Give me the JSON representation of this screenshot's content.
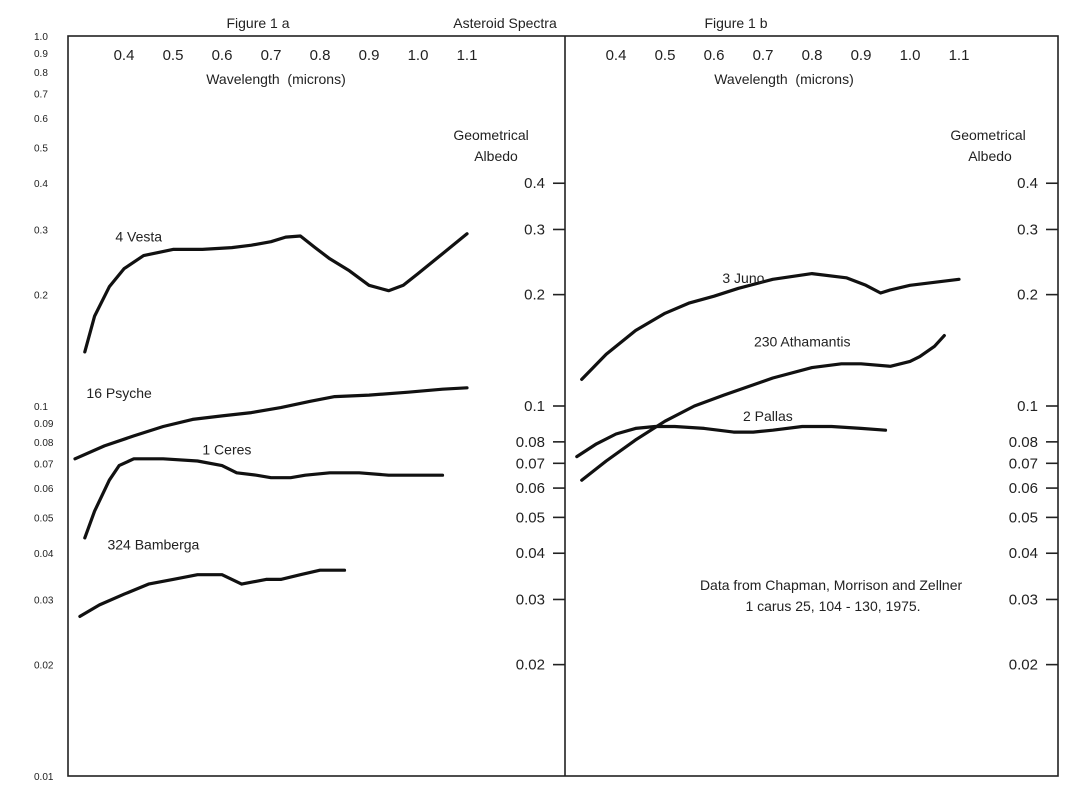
{
  "chart_data": [
    {
      "type": "line",
      "panel": "left",
      "title": "Figure 1 a",
      "supertitle": "Asteroid Spectra",
      "xlabel": "Wavelength  (microns)",
      "ylabel": "Geometrical Albedo",
      "x_ticks": [
        0.4,
        0.5,
        0.6,
        0.7,
        0.8,
        0.9,
        1.0,
        1.1
      ],
      "x_tick_labels": [
        "0.4",
        "0.5",
        "0.6",
        "0.7",
        "0.8",
        "0.9",
        "1.0",
        "1.1"
      ],
      "xlim": [
        0.3,
        1.3
      ],
      "y_scale": "log",
      "ylim": [
        0.01,
        1.0
      ],
      "left_y_ticks": [
        1.0,
        0.9,
        0.8,
        0.7,
        0.6,
        0.5,
        0.4,
        0.3,
        0.2,
        0.1,
        0.09,
        0.08,
        0.07,
        0.06,
        0.05,
        0.04,
        0.03,
        0.02,
        0.01
      ],
      "left_y_tick_labels": [
        "1.0",
        "0.9",
        "0.8",
        "0.7",
        "0.6",
        "0.5",
        "0.4",
        "0.3",
        "0.2",
        "0.1",
        "0.09",
        "0.08",
        "0.07",
        "0.06",
        "0.05",
        "0.04",
        "0.03",
        "0.02",
        "0.01"
      ],
      "right_y_ticks": [
        0.4,
        0.3,
        0.2,
        0.1,
        0.08,
        0.07,
        0.06,
        0.05,
        0.04,
        0.03,
        0.02
      ],
      "right_y_tick_labels": [
        "0.4",
        "0.3",
        "0.2",
        "0.1",
        "0.08",
        "0.07",
        "0.06",
        "0.05",
        "0.04",
        "0.03",
        "0.02"
      ],
      "series": [
        {
          "name": "4 Vesta",
          "label_at": [
            0.43,
            0.278
          ],
          "x": [
            0.32,
            0.34,
            0.37,
            0.4,
            0.44,
            0.5,
            0.56,
            0.62,
            0.66,
            0.7,
            0.73,
            0.76,
            0.79,
            0.82,
            0.86,
            0.9,
            0.94,
            0.97,
            1.0,
            1.05,
            1.1
          ],
          "y": [
            0.14,
            0.175,
            0.21,
            0.235,
            0.255,
            0.265,
            0.265,
            0.268,
            0.272,
            0.278,
            0.286,
            0.288,
            0.268,
            0.25,
            0.232,
            0.212,
            0.205,
            0.212,
            0.228,
            0.258,
            0.292
          ]
        },
        {
          "name": "16 Psyche",
          "label_at": [
            0.39,
            0.105
          ],
          "x": [
            0.3,
            0.36,
            0.42,
            0.48,
            0.54,
            0.6,
            0.66,
            0.72,
            0.78,
            0.83,
            0.9,
            0.98,
            1.05,
            1.1
          ],
          "y": [
            0.072,
            0.078,
            0.083,
            0.088,
            0.092,
            0.094,
            0.096,
            0.099,
            0.103,
            0.106,
            0.107,
            0.109,
            0.111,
            0.112
          ]
        },
        {
          "name": "1 Ceres",
          "label_at": [
            0.61,
            0.074
          ],
          "x": [
            0.32,
            0.34,
            0.37,
            0.39,
            0.42,
            0.48,
            0.55,
            0.6,
            0.63,
            0.67,
            0.7,
            0.74,
            0.77,
            0.82,
            0.88,
            0.94,
            1.0,
            1.05
          ],
          "y": [
            0.044,
            0.052,
            0.063,
            0.069,
            0.072,
            0.072,
            0.071,
            0.069,
            0.066,
            0.065,
            0.064,
            0.064,
            0.065,
            0.066,
            0.066,
            0.065,
            0.065,
            0.065
          ]
        },
        {
          "name": "324 Bamberga",
          "label_at": [
            0.46,
            0.041
          ],
          "x": [
            0.31,
            0.35,
            0.4,
            0.45,
            0.5,
            0.55,
            0.6,
            0.64,
            0.69,
            0.72,
            0.76,
            0.8,
            0.85
          ],
          "y": [
            0.027,
            0.029,
            0.031,
            0.033,
            0.034,
            0.035,
            0.035,
            0.033,
            0.034,
            0.034,
            0.035,
            0.036,
            0.036
          ]
        }
      ]
    },
    {
      "type": "line",
      "panel": "right",
      "title": "Figure 1 b",
      "xlabel": "Wavelength  (microns)",
      "ylabel": "Geometrical Albedo",
      "x_ticks": [
        0.4,
        0.5,
        0.6,
        0.7,
        0.8,
        0.9,
        1.0,
        1.1
      ],
      "x_tick_labels": [
        "0.4",
        "0.5",
        "0.6",
        "0.7",
        "0.8",
        "0.9",
        "1.0",
        "1.1"
      ],
      "xlim": [
        0.3,
        1.3
      ],
      "y_scale": "log",
      "ylim": [
        0.01,
        1.0
      ],
      "right_y_ticks": [
        0.4,
        0.3,
        0.2,
        0.1,
        0.08,
        0.07,
        0.06,
        0.05,
        0.04,
        0.03,
        0.02
      ],
      "right_y_tick_labels": [
        "0.4",
        "0.3",
        "0.2",
        "0.1",
        "0.08",
        "0.07",
        "0.06",
        "0.05",
        "0.04",
        "0.03",
        "0.02"
      ],
      "annotation": [
        "Data from Chapman, Morrison and Zellner",
        "1 carus 25, 104 - 130, 1975."
      ],
      "series": [
        {
          "name": "3 Juno",
          "label_at": [
            0.66,
            0.215
          ],
          "x": [
            0.33,
            0.38,
            0.44,
            0.5,
            0.55,
            0.6,
            0.65,
            0.72,
            0.8,
            0.87,
            0.91,
            0.94,
            0.96,
            1.0,
            1.05,
            1.1
          ],
          "y": [
            0.118,
            0.138,
            0.16,
            0.178,
            0.19,
            0.198,
            0.208,
            0.22,
            0.228,
            0.222,
            0.212,
            0.202,
            0.206,
            0.212,
            0.216,
            0.22
          ]
        },
        {
          "name": "230 Athamantis",
          "label_at": [
            0.78,
            0.145
          ],
          "x": [
            0.33,
            0.38,
            0.44,
            0.5,
            0.56,
            0.62,
            0.68,
            0.72,
            0.8,
            0.86,
            0.9,
            0.96,
            1.0,
            1.02,
            1.05,
            1.07
          ],
          "y": [
            0.063,
            0.071,
            0.081,
            0.091,
            0.1,
            0.107,
            0.114,
            0.119,
            0.127,
            0.13,
            0.13,
            0.128,
            0.132,
            0.136,
            0.145,
            0.155
          ]
        },
        {
          "name": "2 Pallas",
          "label_at": [
            0.71,
            0.091
          ],
          "x": [
            0.32,
            0.36,
            0.4,
            0.44,
            0.48,
            0.52,
            0.58,
            0.64,
            0.68,
            0.72,
            0.78,
            0.84,
            0.9,
            0.95
          ],
          "y": [
            0.073,
            0.079,
            0.084,
            0.087,
            0.088,
            0.088,
            0.087,
            0.085,
            0.085,
            0.086,
            0.088,
            0.088,
            0.087,
            0.086
          ]
        }
      ]
    }
  ]
}
